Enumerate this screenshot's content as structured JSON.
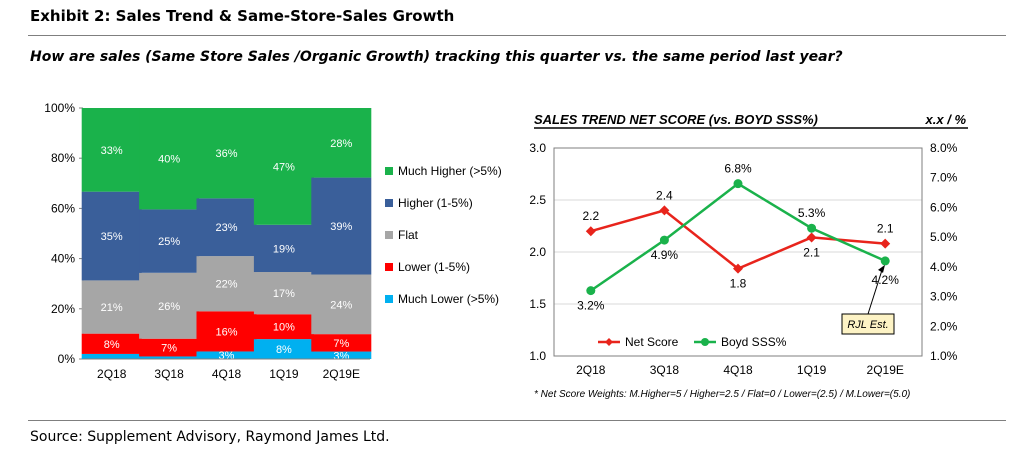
{
  "header": {
    "title": "Exhibit 2: Sales Trend & Same-Store-Sales Growth",
    "question": "How are sales (Same Store Sales /Organic Growth) tracking this quarter vs. the same period last year?"
  },
  "footer": {
    "source": "Source: Supplement Advisory, Raymond James Ltd."
  },
  "chart_data": [
    {
      "type": "bar",
      "stacked": true,
      "percent": true,
      "categories": [
        "2Q18",
        "3Q18",
        "4Q18",
        "1Q19",
        "2Q19E"
      ],
      "ylim": [
        0,
        100
      ],
      "yticks": [
        "0%",
        "20%",
        "40%",
        "60%",
        "80%",
        "100%"
      ],
      "legend_position": "right",
      "series": [
        {
          "name": "Much Lower (>5%)",
          "color": "#00b0f0",
          "values": [
            2,
            1,
            3,
            8,
            3
          ],
          "labels": [
            "",
            "",
            "3%",
            "8%",
            "3%"
          ]
        },
        {
          "name": "Lower (1-5%)",
          "color": "#ff0000",
          "values": [
            8,
            7,
            16,
            10,
            7
          ],
          "labels": [
            "8%",
            "7%",
            "16%",
            "10%",
            "7%"
          ]
        },
        {
          "name": "Flat",
          "color": "#a6a6a6",
          "values": [
            21,
            26,
            22,
            17,
            24
          ],
          "labels": [
            "21%",
            "26%",
            "22%",
            "17%",
            "24%"
          ]
        },
        {
          "name": "Higher (1-5%)",
          "color": "#3a5f9a",
          "values": [
            35,
            25,
            23,
            19,
            39
          ],
          "labels": [
            "35%",
            "25%",
            "23%",
            "19%",
            "39%"
          ]
        },
        {
          "name": "Much Higher (>5%)",
          "color": "#1ab24b",
          "values": [
            33,
            40,
            36,
            47,
            28
          ],
          "labels": [
            "33%",
            "40%",
            "36%",
            "47%",
            "28%"
          ]
        }
      ]
    },
    {
      "type": "line",
      "title": "SALES TREND NET SCORE (vs. BOYD SSS%)",
      "right_header": "x.x / %",
      "categories": [
        "2Q18",
        "3Q18",
        "4Q18",
        "1Q19",
        "2Q19E"
      ],
      "ylim": [
        1.0,
        3.0
      ],
      "yticks": [
        "1.0",
        "1.5",
        "2.0",
        "2.5",
        "3.0"
      ],
      "y2lim": [
        1.0,
        8.0
      ],
      "y2ticks": [
        "1.0%",
        "2.0%",
        "3.0%",
        "4.0%",
        "5.0%",
        "6.0%",
        "7.0%",
        "8.0%"
      ],
      "grid": true,
      "legend_position": "bottom-left",
      "series": [
        {
          "name": "Net Score",
          "axis": "left",
          "color": "#e8241c",
          "marker": "diamond",
          "values": [
            2.2,
            2.4,
            1.84,
            2.14,
            2.08
          ],
          "labels": [
            "2.2",
            "2.4",
            "1.8",
            "2.1",
            "2.1"
          ]
        },
        {
          "name": "Boyd SSS%",
          "axis": "right",
          "color": "#1ab24b",
          "marker": "circle",
          "values": [
            3.2,
            4.9,
            6.8,
            5.3,
            4.2
          ],
          "labels": [
            "3.2%",
            "4.9%",
            "6.8%",
            "5.3%",
            "4.2%"
          ]
        }
      ],
      "annotation": "RJL Est.",
      "footnote": "* Net Score Weights:  M.Higher=5 / Higher=2.5 / Flat=0 / Lower=(2.5) / M.Lower=(5.0)"
    }
  ]
}
